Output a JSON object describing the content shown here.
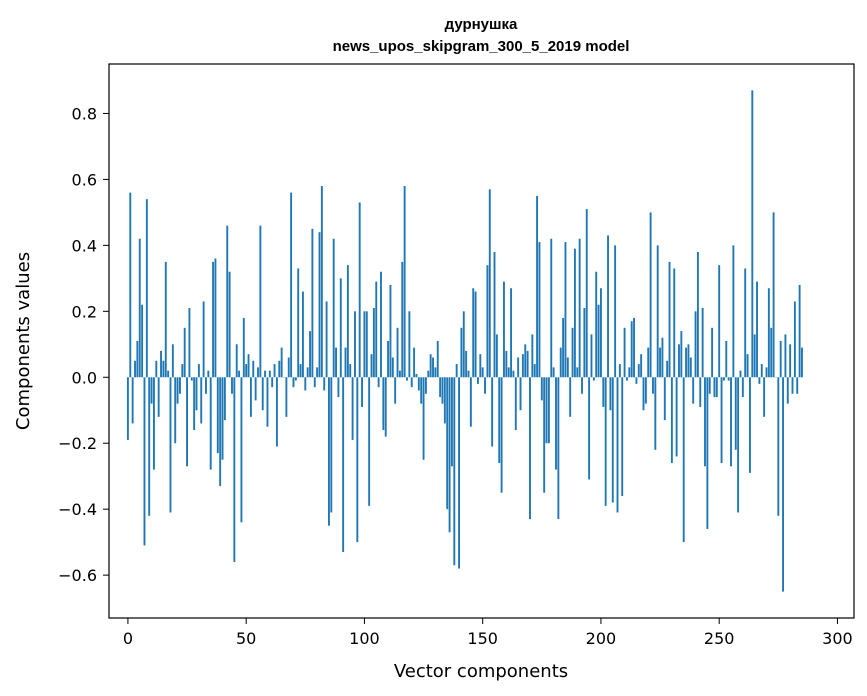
{
  "chart_data": {
    "type": "bar",
    "title_line1": "дурнушка",
    "title_line2": "news_upos_skipgram_300_5_2019 model",
    "xlabel": "Vector components",
    "ylabel": "Components values",
    "xlim": [
      -8,
      307
    ],
    "ylim": [
      -0.73,
      0.95
    ],
    "xticks": [
      0,
      50,
      100,
      150,
      200,
      250,
      300
    ],
    "xtick_labels": [
      "0",
      "50",
      "100",
      "150",
      "200",
      "250",
      "300"
    ],
    "yticks": [
      -0.6,
      -0.4,
      -0.2,
      0.0,
      0.2,
      0.4,
      0.6,
      0.8
    ],
    "ytick_labels": [
      "−0.6",
      "−0.4",
      "−0.2",
      "0.0",
      "0.2",
      "0.4",
      "0.6",
      "0.8"
    ],
    "bar_color": "#1f77b4",
    "grid": false,
    "values": [
      -0.19,
      0.56,
      -0.14,
      0.05,
      0.11,
      0.42,
      0.22,
      -0.51,
      0.54,
      -0.42,
      -0.08,
      -0.28,
      0.05,
      -0.12,
      0.08,
      0.05,
      0.35,
      0.02,
      -0.41,
      0.1,
      -0.2,
      -0.08,
      -0.05,
      0.04,
      0.15,
      -0.27,
      0.21,
      -0.01,
      -0.16,
      -0.1,
      0.04,
      -0.14,
      0.23,
      -0.05,
      0.02,
      -0.28,
      0.35,
      0.36,
      -0.23,
      -0.33,
      -0.25,
      -0.13,
      0.46,
      0.32,
      -0.05,
      -0.56,
      0.1,
      0.02,
      -0.44,
      0.18,
      0.04,
      0.07,
      -0.12,
      0.05,
      -0.07,
      0.03,
      0.46,
      -0.1,
      0.02,
      -0.15,
      0.02,
      -0.03,
      0.04,
      -0.21,
      0.05,
      0.09,
      0.0,
      -0.12,
      0.06,
      0.56,
      -0.03,
      -0.01,
      0.33,
      0.04,
      0.26,
      -0.04,
      0.03,
      0.14,
      0.45,
      -0.03,
      0.03,
      0.44,
      0.58,
      -0.04,
      0.23,
      -0.45,
      -0.41,
      0.42,
      0.09,
      -0.06,
      0.3,
      -0.53,
      0.09,
      0.34,
      0.04,
      -0.19,
      0.2,
      -0.5,
      0.53,
      -0.09,
      0.2,
      0.2,
      -0.39,
      0.07,
      0.21,
      0.29,
      -0.03,
      0.32,
      -0.16,
      -0.18,
      0.11,
      0.28,
      0.06,
      -0.08,
      0.15,
      0.02,
      0.35,
      0.58,
      -0.01,
      0.2,
      -0.03,
      0.09,
      0.01,
      -0.04,
      -0.08,
      -0.25,
      -0.05,
      0.02,
      0.07,
      0.06,
      0.03,
      0.11,
      -0.06,
      -0.08,
      -0.14,
      -0.4,
      -0.47,
      -0.27,
      -0.57,
      0.04,
      -0.58,
      0.15,
      0.2,
      0.08,
      0.02,
      -0.15,
      0.27,
      0.26,
      -0.02,
      0.07,
      0.03,
      -0.05,
      0.34,
      0.57,
      -0.21,
      0.38,
      0.13,
      -0.26,
      -0.35,
      0.29,
      0.08,
      0.03,
      0.27,
      0.02,
      -0.16,
      0.06,
      -0.1,
      0.07,
      0.1,
      0.08,
      -0.43,
      0.13,
      0.04,
      0.55,
      0.41,
      -0.07,
      -0.35,
      -0.2,
      -0.2,
      0.42,
      0.03,
      -0.28,
      -0.43,
      0.09,
      0.18,
      0.41,
      0.06,
      -0.12,
      0.15,
      0.39,
      0.03,
      0.42,
      -0.05,
      0.21,
      0.51,
      -0.31,
      0.13,
      -0.01,
      0.32,
      0.22,
      0.27,
      -0.09,
      -0.39,
      0.43,
      -0.1,
      -0.38,
      0.4,
      -0.41,
      0.04,
      -0.36,
      0.15,
      -0.01,
      0.03,
      0.17,
      0.18,
      -0.02,
      0.04,
      0.07,
      -0.1,
      -0.08,
      0.09,
      0.5,
      -0.05,
      -0.22,
      0.4,
      0.09,
      0.12,
      -0.13,
      0.05,
      0.35,
      -0.26,
      0.33,
      -0.24,
      0.1,
      0.14,
      -0.5,
      0.09,
      0.1,
      0.06,
      -0.08,
      0.2,
      0.38,
      -0.09,
      0.21,
      -0.27,
      -0.46,
      -0.05,
      0.15,
      -0.06,
      -0.06,
      0.34,
      -0.26,
      -0.01,
      0.11,
      -0.01,
      -0.27,
      0.4,
      -0.22,
      -0.41,
      0.02,
      -0.06,
      0.33,
      0.07,
      -0.29,
      0.87,
      0.13,
      0.29,
      -0.02,
      0.04,
      -0.12,
      0.03,
      0.27,
      0.15,
      0.5,
      0.0,
      -0.42,
      0.11,
      -0.65,
      0.13,
      -0.08,
      0.1,
      -0.05,
      0.23,
      -0.05,
      0.28,
      0.09
    ]
  }
}
